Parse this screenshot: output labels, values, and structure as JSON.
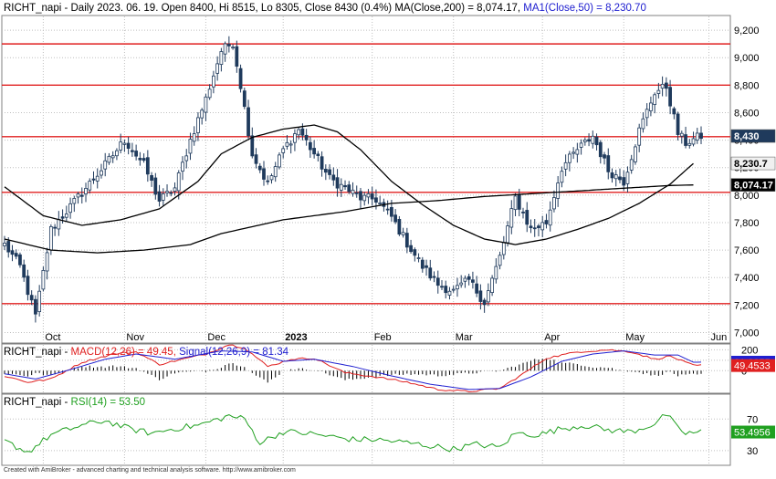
{
  "header": {
    "symbol": "RICHT_napi",
    "info": " - Daily 2023. 06. 19. Open 8400, Hi 8515, Lo 8305, Close 8430 (0.4%) ",
    "ma200": "MA(Close,200) = 8,074.17,",
    "ma50": " MA1(Close,50) = 8,230.70"
  },
  "macd_header": {
    "symbol": "RICHT_napi",
    "sep": " - ",
    "macd": "MACD(12,26) = 49.45,",
    "signal": " Signal(12,26,9) = 81.34"
  },
  "rsi_header": {
    "symbol": "RICHT_napi",
    "sep": " - ",
    "rsi": "RSI(14) = 53.50"
  },
  "footer": "Created with AmiBroker - advanced charting and technical analysis software. http://www.amibroker.com",
  "colors": {
    "candle": "#1f3a5c",
    "ma": "#000000",
    "hline": "#e02020",
    "macd": "#e02020",
    "signal": "#2020d0",
    "rsi": "#20a020",
    "grid": "#bfbfbf"
  },
  "chart_data": {
    "type": "candlestick",
    "y_ticks": [
      "7,000",
      "7,200",
      "7,400",
      "7,600",
      "7,800",
      "8,000",
      "8,200",
      "8,400",
      "8,600",
      "8,800",
      "9,000",
      "9,200"
    ],
    "ylim": [
      6930,
      9300
    ],
    "x_labels": [
      "Oct",
      "Nov",
      "Dec",
      "2023",
      "Feb",
      "Mar",
      "Apr",
      "May",
      "Jun"
    ],
    "x_label_index": [
      10,
      31,
      52,
      72,
      95,
      116,
      139,
      160,
      182
    ],
    "horizontal_levels": [
      9100,
      8800,
      8425,
      8020,
      7210
    ],
    "price_badges": [
      {
        "label": "8,430",
        "value": 8430,
        "bg": "#1f3a5c"
      },
      {
        "label": "8,230.7",
        "value": 8230.7,
        "bg": "#f0f0f0"
      },
      {
        "label": "8,074.17",
        "value": 8074.17,
        "bg": "#000000"
      }
    ],
    "close_anchors": [
      [
        0,
        7640
      ],
      [
        4,
        7480
      ],
      [
        8,
        7120
      ],
      [
        12,
        7750
      ],
      [
        18,
        7950
      ],
      [
        26,
        8220
      ],
      [
        31,
        8400
      ],
      [
        36,
        8220
      ],
      [
        40,
        7960
      ],
      [
        44,
        8050
      ],
      [
        48,
        8400
      ],
      [
        52,
        8700
      ],
      [
        56,
        9050
      ],
      [
        59,
        9110
      ],
      [
        61,
        8800
      ],
      [
        64,
        8300
      ],
      [
        68,
        8080
      ],
      [
        72,
        8330
      ],
      [
        76,
        8480
      ],
      [
        80,
        8300
      ],
      [
        84,
        8120
      ],
      [
        88,
        8050
      ],
      [
        92,
        7980
      ],
      [
        96,
        7970
      ],
      [
        100,
        7840
      ],
      [
        104,
        7650
      ],
      [
        108,
        7480
      ],
      [
        112,
        7350
      ],
      [
        116,
        7300
      ],
      [
        120,
        7380
      ],
      [
        124,
        7220
      ],
      [
        128,
        7550
      ],
      [
        132,
        7980
      ],
      [
        136,
        7750
      ],
      [
        140,
        7800
      ],
      [
        144,
        8200
      ],
      [
        148,
        8330
      ],
      [
        152,
        8430
      ],
      [
        156,
        8180
      ],
      [
        160,
        8100
      ],
      [
        164,
        8470
      ],
      [
        168,
        8750
      ],
      [
        171,
        8790
      ],
      [
        174,
        8450
      ],
      [
        176,
        8380
      ],
      [
        180,
        8430
      ]
    ],
    "ma50_anchors": [
      [
        0,
        8060
      ],
      [
        10,
        7850
      ],
      [
        20,
        7780
      ],
      [
        30,
        7820
      ],
      [
        40,
        7900
      ],
      [
        50,
        8100
      ],
      [
        56,
        8300
      ],
      [
        64,
        8420
      ],
      [
        72,
        8480
      ],
      [
        80,
        8510
      ],
      [
        86,
        8460
      ],
      [
        92,
        8330
      ],
      [
        100,
        8100
      ],
      [
        108,
        7930
      ],
      [
        116,
        7780
      ],
      [
        124,
        7680
      ],
      [
        132,
        7640
      ],
      [
        140,
        7680
      ],
      [
        148,
        7750
      ],
      [
        156,
        7830
      ],
      [
        164,
        7940
      ],
      [
        172,
        8080
      ],
      [
        178,
        8230
      ]
    ],
    "ma200_anchors": [
      [
        0,
        7680
      ],
      [
        12,
        7600
      ],
      [
        24,
        7580
      ],
      [
        36,
        7600
      ],
      [
        48,
        7640
      ],
      [
        56,
        7720
      ],
      [
        64,
        7770
      ],
      [
        72,
        7820
      ],
      [
        80,
        7850
      ],
      [
        88,
        7880
      ],
      [
        100,
        7940
      ],
      [
        112,
        7960
      ],
      [
        124,
        7990
      ],
      [
        136,
        8010
      ],
      [
        148,
        8030
      ],
      [
        160,
        8050
      ],
      [
        172,
        8070
      ],
      [
        178,
        8074
      ]
    ],
    "macd": {
      "y_ticks": [
        "200",
        "100",
        "0"
      ],
      "ylim": [
        -190,
        230
      ],
      "badges": [
        {
          "label": "81.3355",
          "value": 81.34,
          "bg": "#2020d0"
        },
        {
          "label": "49.4533",
          "value": 49.45,
          "bg": "#e02020"
        }
      ],
      "macd_anchors": [
        [
          0,
          -50
        ],
        [
          6,
          -110
        ],
        [
          12,
          -80
        ],
        [
          20,
          80
        ],
        [
          28,
          160
        ],
        [
          34,
          180
        ],
        [
          40,
          60
        ],
        [
          46,
          110
        ],
        [
          52,
          160
        ],
        [
          58,
          250
        ],
        [
          62,
          220
        ],
        [
          68,
          40
        ],
        [
          74,
          110
        ],
        [
          80,
          120
        ],
        [
          88,
          -20
        ],
        [
          96,
          -60
        ],
        [
          104,
          -110
        ],
        [
          112,
          -180
        ],
        [
          120,
          -200
        ],
        [
          128,
          -170
        ],
        [
          134,
          -30
        ],
        [
          140,
          120
        ],
        [
          148,
          180
        ],
        [
          156,
          200
        ],
        [
          162,
          180
        ],
        [
          168,
          110
        ],
        [
          172,
          140
        ],
        [
          178,
          49
        ]
      ],
      "signal_anchors": [
        [
          0,
          -30
        ],
        [
          8,
          -80
        ],
        [
          16,
          0
        ],
        [
          26,
          110
        ],
        [
          34,
          160
        ],
        [
          44,
          110
        ],
        [
          56,
          190
        ],
        [
          64,
          180
        ],
        [
          72,
          90
        ],
        [
          80,
          110
        ],
        [
          90,
          40
        ],
        [
          100,
          -50
        ],
        [
          110,
          -130
        ],
        [
          120,
          -180
        ],
        [
          128,
          -170
        ],
        [
          136,
          -60
        ],
        [
          144,
          90
        ],
        [
          152,
          160
        ],
        [
          160,
          190
        ],
        [
          168,
          150
        ],
        [
          174,
          150
        ],
        [
          178,
          81
        ]
      ]
    },
    "rsi": {
      "y_ticks": [
        "70",
        "30"
      ],
      "ylim": [
        16,
        83
      ],
      "badge": {
        "label": "53.4956",
        "value": 53.5,
        "bg": "#20a020"
      },
      "rsi_anchors": [
        [
          0,
          42
        ],
        [
          6,
          28
        ],
        [
          12,
          50
        ],
        [
          20,
          62
        ],
        [
          26,
          68
        ],
        [
          32,
          58
        ],
        [
          38,
          52
        ],
        [
          44,
          58
        ],
        [
          50,
          62
        ],
        [
          58,
          74
        ],
        [
          62,
          70
        ],
        [
          66,
          40
        ],
        [
          72,
          54
        ],
        [
          78,
          52
        ],
        [
          84,
          48
        ],
        [
          90,
          44
        ],
        [
          96,
          44
        ],
        [
          104,
          40
        ],
        [
          110,
          36
        ],
        [
          116,
          32
        ],
        [
          122,
          38
        ],
        [
          128,
          34
        ],
        [
          132,
          52
        ],
        [
          138,
          50
        ],
        [
          144,
          58
        ],
        [
          150,
          62
        ],
        [
          156,
          56
        ],
        [
          162,
          54
        ],
        [
          168,
          64
        ],
        [
          171,
          76
        ],
        [
          174,
          58
        ],
        [
          176,
          52
        ],
        [
          180,
          53.5
        ]
      ]
    }
  }
}
